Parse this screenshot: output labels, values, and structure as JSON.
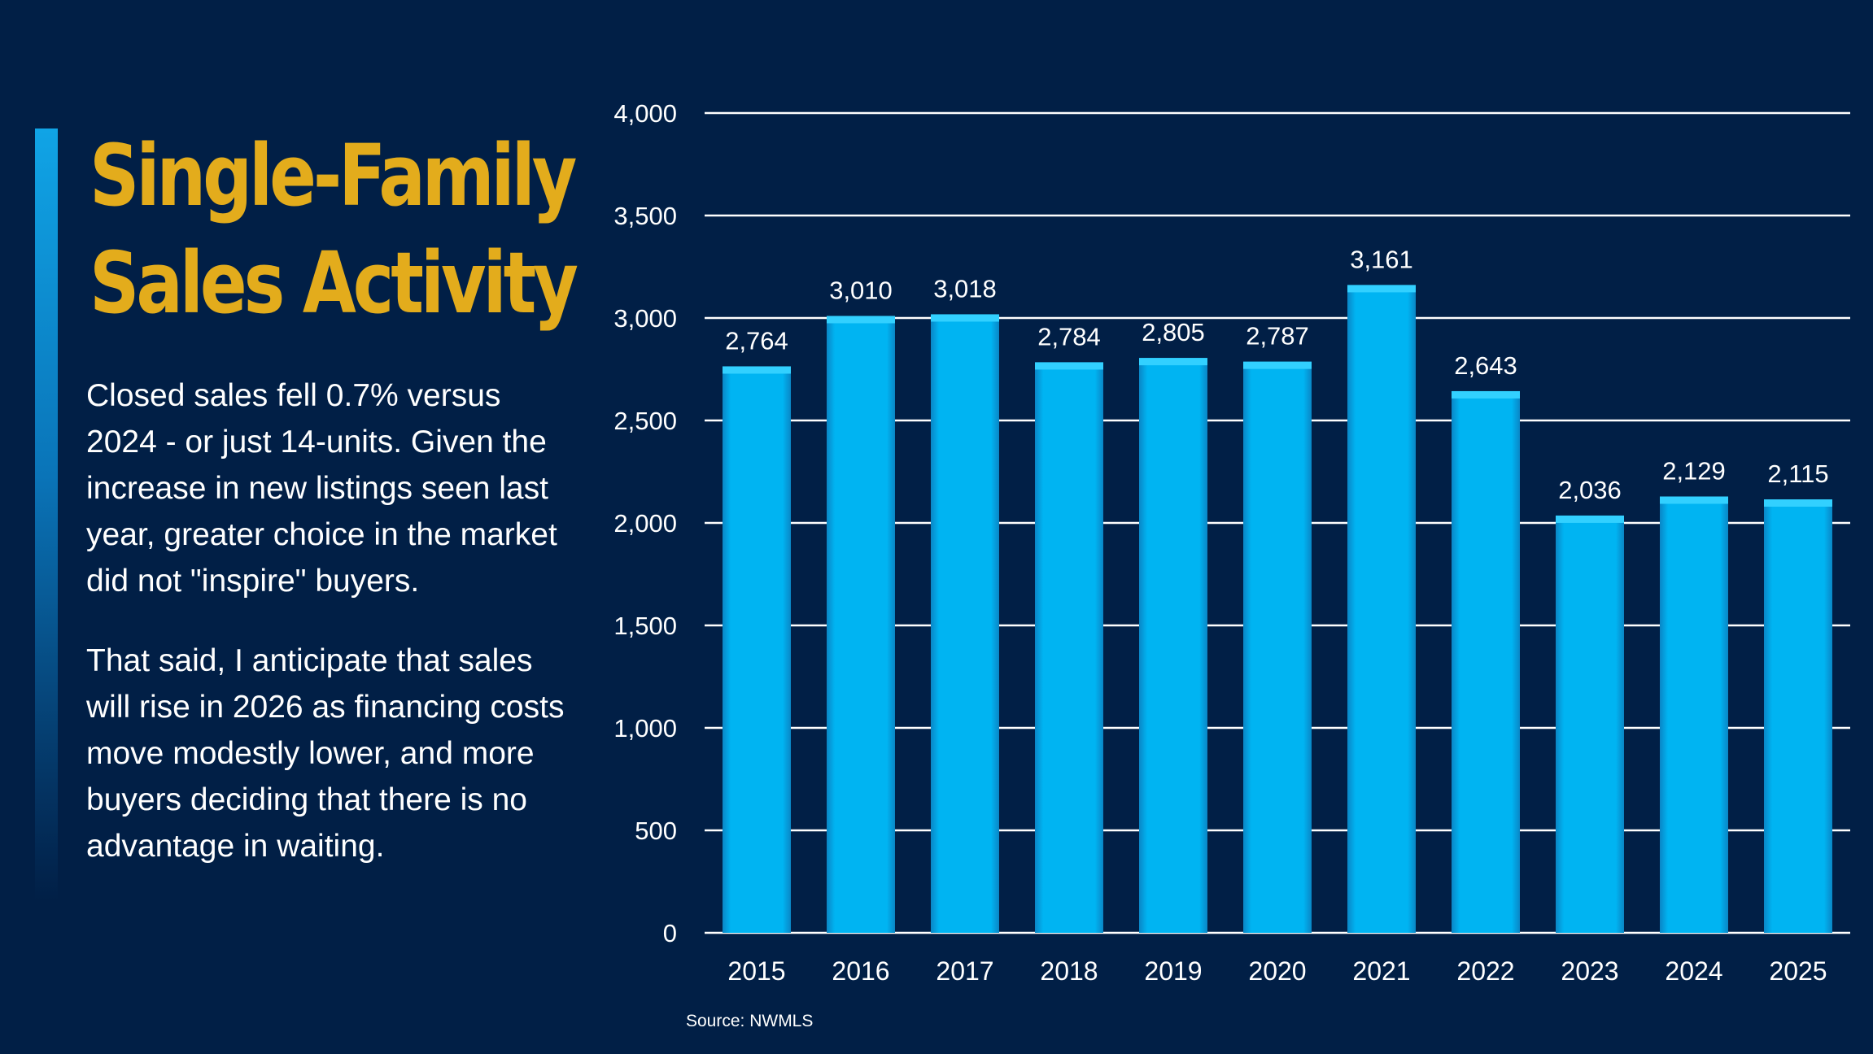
{
  "slide": {
    "title_line1": "Single-Family",
    "title_line2": "Sales Activity",
    "paragraph1": "Closed sales fell 0.7% versus 2024 - or just 14-units. Given the increase in new listings seen last year, greater choice in the market did not \"inspire\" buyers.",
    "paragraph2": "That said, I anticipate that sales will rise in 2026 as financing costs move modestly lower, and more buyers deciding that there is no advantage in waiting.",
    "source": "Source: NWMLS"
  },
  "colors": {
    "background": "#011f46",
    "title": "#e3ac1c",
    "bar": "#00b4f2",
    "gridline": "#ffffff",
    "text": "#ffffff"
  },
  "chart_data": {
    "type": "bar",
    "categories": [
      "2015",
      "2016",
      "2017",
      "2018",
      "2019",
      "2020",
      "2021",
      "2022",
      "2023",
      "2024",
      "2025"
    ],
    "values": [
      2764,
      3010,
      3018,
      2784,
      2805,
      2787,
      3161,
      2643,
      2036,
      2129,
      2115
    ],
    "value_labels": [
      "2,764",
      "3,010",
      "3,018",
      "2,784",
      "2,805",
      "2,787",
      "3,161",
      "2,643",
      "2,036",
      "2,129",
      "2,115"
    ],
    "yticks": [
      0,
      500,
      1000,
      1500,
      2000,
      2500,
      3000,
      3500,
      4000
    ],
    "ytick_labels": [
      "0",
      "500",
      "1,000",
      "1,500",
      "2,000",
      "2,500",
      "3,000",
      "3,500",
      "4,000"
    ],
    "ylim": [
      0,
      4000
    ],
    "grid": true,
    "legend": false,
    "title": "",
    "xlabel": "",
    "ylabel": ""
  }
}
